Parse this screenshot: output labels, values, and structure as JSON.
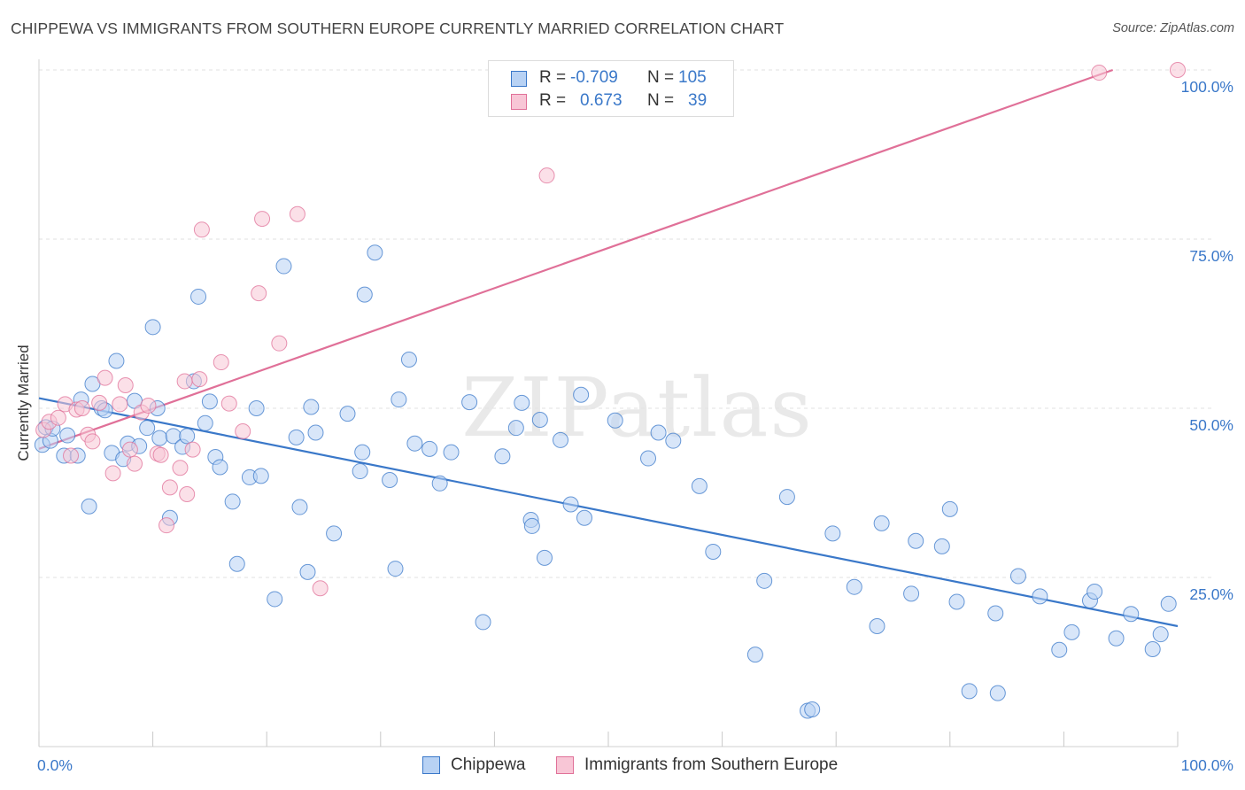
{
  "title": "CHIPPEWA VS IMMIGRANTS FROM SOUTHERN EUROPE CURRENTLY MARRIED CORRELATION CHART",
  "source": "Source: ZipAtlas.com",
  "watermark": "ZIPatlas",
  "legend": {
    "rows": [
      {
        "r_label": "R =",
        "r_value": "-0.709",
        "n_label": "N =",
        "n_value": "105"
      },
      {
        "r_label": "R =",
        "r_value": "0.673",
        "n_label": "N =",
        "n_value": "39"
      }
    ]
  },
  "bottom_legend": [
    "Chippewa",
    "Immigrants from Southern Europe"
  ],
  "chart_data": {
    "type": "scatter",
    "title": "CHIPPEWA VS IMMIGRANTS FROM SOUTHERN EUROPE CURRENTLY MARRIED CORRELATION CHART",
    "xlabel": "",
    "ylabel": "Currently Married",
    "x_tick_labels": [
      "0.0%",
      "100.0%"
    ],
    "y_tick_labels": [
      "25.0%",
      "50.0%",
      "75.0%",
      "100.0%"
    ],
    "y_ticks": [
      25,
      50,
      75,
      100
    ],
    "xlim": [
      0,
      100
    ],
    "ylim": [
      0,
      100
    ],
    "grid": true,
    "legend_position": "top-center",
    "colors": {
      "Chippewa": "#3a78c9",
      "Immigrants from Southern Europe": "#e07098",
      "Chippewa_fill": "#b8d2f4",
      "Immigrants_fill": "#f8c6d6"
    },
    "series": [
      {
        "name": "Chippewa",
        "trendline": {
          "x": [
            0,
            100
          ],
          "y": [
            51.5,
            17.8
          ]
        },
        "points": [
          [
            0.3,
            44.6
          ],
          [
            0.6,
            47.2
          ],
          [
            1.0,
            45.2
          ],
          [
            1.2,
            47.0
          ],
          [
            2.2,
            43.0
          ],
          [
            2.5,
            46.0
          ],
          [
            3.4,
            43.0
          ],
          [
            3.7,
            51.3
          ],
          [
            4.4,
            35.5
          ],
          [
            4.7,
            53.6
          ],
          [
            5.5,
            50.0
          ],
          [
            5.8,
            49.7
          ],
          [
            6.4,
            43.4
          ],
          [
            6.8,
            57.0
          ],
          [
            7.4,
            42.5
          ],
          [
            7.8,
            44.8
          ],
          [
            8.4,
            51.1
          ],
          [
            8.8,
            44.4
          ],
          [
            9.5,
            47.1
          ],
          [
            10.0,
            62.0
          ],
          [
            10.4,
            50.0
          ],
          [
            10.6,
            45.6
          ],
          [
            11.5,
            33.8
          ],
          [
            11.8,
            45.9
          ],
          [
            12.6,
            44.3
          ],
          [
            13.0,
            45.9
          ],
          [
            13.6,
            54.0
          ],
          [
            14.0,
            66.5
          ],
          [
            14.6,
            47.8
          ],
          [
            15.0,
            51.0
          ],
          [
            15.5,
            42.8
          ],
          [
            15.9,
            41.3
          ],
          [
            17.0,
            36.2
          ],
          [
            17.4,
            27.0
          ],
          [
            18.5,
            39.8
          ],
          [
            19.1,
            50.0
          ],
          [
            19.5,
            40.0
          ],
          [
            20.7,
            21.8
          ],
          [
            21.5,
            71.0
          ],
          [
            22.6,
            45.7
          ],
          [
            22.9,
            35.4
          ],
          [
            23.6,
            25.8
          ],
          [
            23.9,
            50.2
          ],
          [
            24.3,
            46.4
          ],
          [
            25.9,
            31.5
          ],
          [
            27.1,
            49.2
          ],
          [
            28.2,
            40.7
          ],
          [
            28.4,
            43.5
          ],
          [
            28.6,
            66.8
          ],
          [
            29.5,
            73.0
          ],
          [
            30.8,
            39.4
          ],
          [
            31.3,
            26.3
          ],
          [
            31.6,
            51.3
          ],
          [
            32.5,
            57.2
          ],
          [
            33.0,
            44.8
          ],
          [
            34.3,
            44.0
          ],
          [
            35.2,
            38.9
          ],
          [
            36.2,
            43.5
          ],
          [
            37.8,
            50.9
          ],
          [
            39.0,
            18.4
          ],
          [
            40.7,
            42.9
          ],
          [
            41.9,
            47.1
          ],
          [
            42.4,
            50.8
          ],
          [
            43.2,
            33.5
          ],
          [
            43.3,
            32.6
          ],
          [
            44.0,
            48.3
          ],
          [
            44.4,
            27.9
          ],
          [
            45.8,
            45.3
          ],
          [
            46.7,
            35.8
          ],
          [
            47.6,
            52.0
          ],
          [
            47.9,
            33.8
          ],
          [
            50.6,
            48.2
          ],
          [
            53.5,
            42.6
          ],
          [
            54.4,
            46.4
          ],
          [
            55.7,
            45.2
          ],
          [
            58.0,
            38.5
          ],
          [
            59.2,
            28.8
          ],
          [
            62.9,
            13.6
          ],
          [
            63.7,
            24.5
          ],
          [
            65.7,
            36.9
          ],
          [
            67.5,
            5.3
          ],
          [
            67.9,
            5.5
          ],
          [
            69.7,
            31.5
          ],
          [
            71.6,
            23.6
          ],
          [
            73.6,
            17.8
          ],
          [
            74.0,
            33.0
          ],
          [
            76.6,
            22.6
          ],
          [
            77.0,
            30.4
          ],
          [
            79.3,
            29.6
          ],
          [
            80.0,
            35.1
          ],
          [
            80.6,
            21.4
          ],
          [
            81.7,
            8.2
          ],
          [
            84.0,
            19.7
          ],
          [
            84.2,
            7.9
          ],
          [
            86.0,
            25.2
          ],
          [
            87.9,
            22.2
          ],
          [
            89.6,
            14.3
          ],
          [
            90.7,
            16.9
          ],
          [
            92.3,
            21.6
          ],
          [
            92.7,
            22.9
          ],
          [
            94.6,
            16.0
          ],
          [
            95.9,
            19.6
          ],
          [
            97.8,
            14.4
          ],
          [
            98.5,
            16.6
          ],
          [
            99.2,
            21.1
          ]
        ]
      },
      {
        "name": "Immigrants from Southern Europe",
        "trendline": {
          "x": [
            0,
            94.3
          ],
          "y": [
            44.0,
            100
          ]
        },
        "points": [
          [
            0.4,
            46.8
          ],
          [
            0.9,
            48.0
          ],
          [
            1.7,
            48.6
          ],
          [
            2.3,
            50.6
          ],
          [
            2.8,
            43.0
          ],
          [
            3.3,
            49.8
          ],
          [
            3.8,
            50.0
          ],
          [
            4.3,
            46.1
          ],
          [
            4.7,
            45.1
          ],
          [
            5.3,
            50.8
          ],
          [
            5.8,
            54.5
          ],
          [
            6.5,
            40.4
          ],
          [
            7.1,
            50.6
          ],
          [
            7.6,
            53.4
          ],
          [
            8.0,
            43.9
          ],
          [
            8.4,
            41.8
          ],
          [
            9.0,
            49.4
          ],
          [
            9.6,
            50.4
          ],
          [
            10.4,
            43.3
          ],
          [
            10.7,
            43.1
          ],
          [
            11.2,
            32.7
          ],
          [
            11.5,
            38.3
          ],
          [
            12.4,
            41.2
          ],
          [
            12.8,
            54.0
          ],
          [
            13.0,
            37.3
          ],
          [
            13.5,
            43.9
          ],
          [
            14.1,
            54.3
          ],
          [
            14.3,
            76.4
          ],
          [
            16.0,
            56.8
          ],
          [
            16.7,
            50.7
          ],
          [
            17.9,
            46.6
          ],
          [
            19.3,
            67.0
          ],
          [
            19.6,
            78.0
          ],
          [
            21.1,
            59.6
          ],
          [
            22.7,
            78.7
          ],
          [
            24.7,
            23.4
          ],
          [
            44.6,
            84.4
          ],
          [
            93.1,
            99.6
          ],
          [
            100.0,
            100.0
          ]
        ]
      }
    ]
  }
}
